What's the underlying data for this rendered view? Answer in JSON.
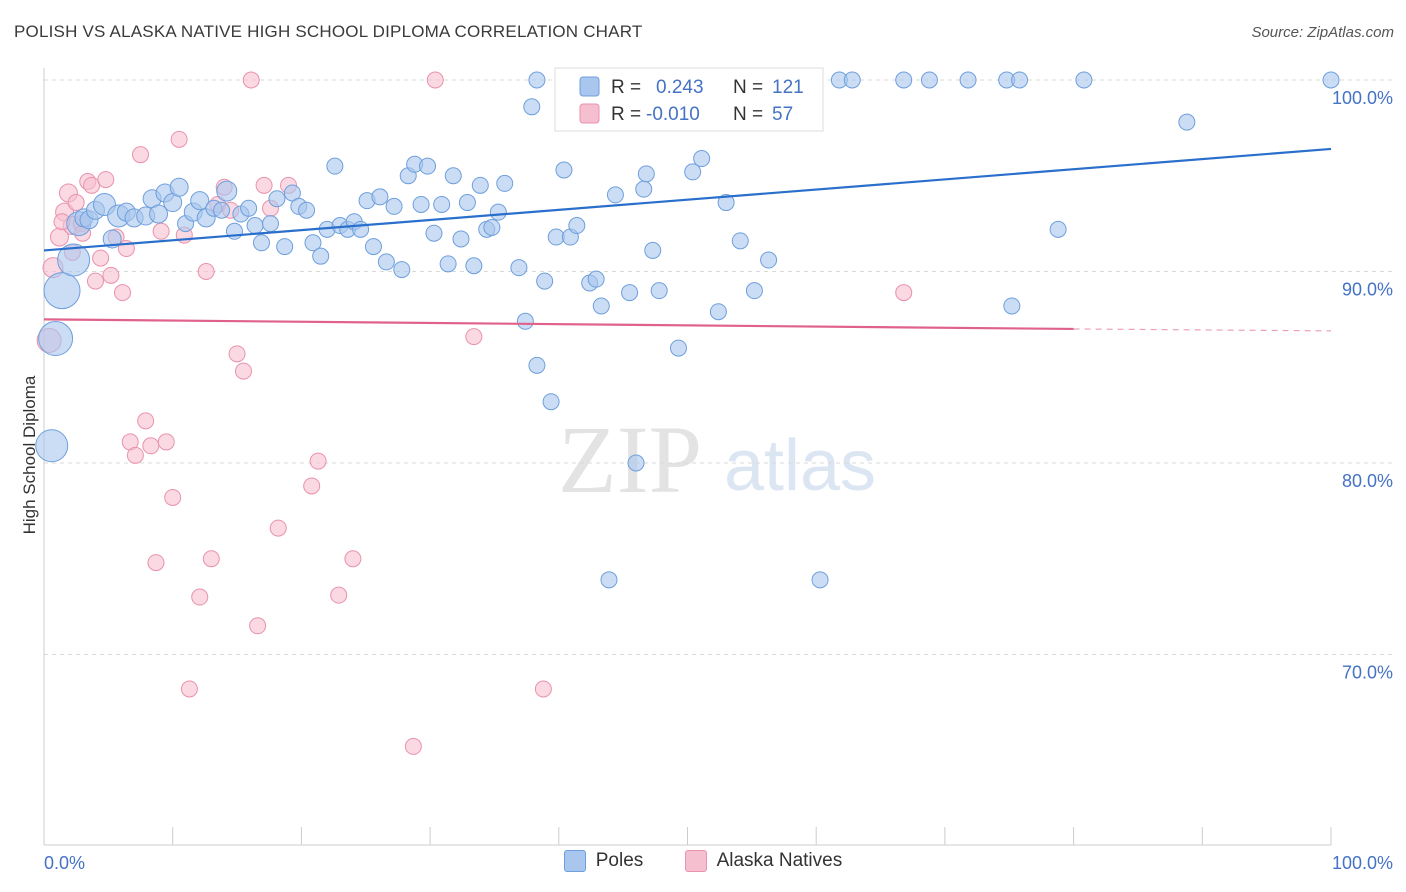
{
  "title": "POLISH VS ALASKA NATIVE HIGH SCHOOL DIPLOMA CORRELATION CHART",
  "source": "Source: ZipAtlas.com",
  "watermark": {
    "zip": "ZIP",
    "atlas": "atlas"
  },
  "colors": {
    "poles_fill": "#a9c6ef",
    "poles_stroke": "#6e9fdc",
    "poles_line": "#2a6fcc",
    "natives_fill": "#f6bfd0",
    "natives_stroke": "#e992ad",
    "natives_line": "#e0628a",
    "axis_label": "#4472c4",
    "grid": "#d9d9d9"
  },
  "legend": {
    "poles": {
      "r_label": "R =",
      "r_value": "0.243",
      "n_label": "N =",
      "n_value": "121"
    },
    "natives": {
      "r_label": "R =",
      "r_value": "-0.010",
      "n_label": "N =",
      "n_value": "57"
    }
  },
  "chart_data": {
    "type": "scatter",
    "title": "POLISH VS ALASKA NATIVE HIGH SCHOOL DIPLOMA CORRELATION CHART",
    "xlabel": "",
    "ylabel": "High School Diploma",
    "xlim": [
      0,
      100
    ],
    "ylim": [
      60.5,
      101.5
    ],
    "x_tick_labels": [
      "0.0%",
      "100.0%"
    ],
    "y_ticks": [
      70,
      80,
      90,
      100
    ],
    "y_tick_labels": [
      "70.0%",
      "80.0%",
      "90.0%",
      "100.0%"
    ],
    "grid": "horizontal dashed",
    "legend_placement": "top-center",
    "series": [
      {
        "name": "Poles",
        "r": 0.243,
        "n": 121,
        "trend": {
          "x": [
            0,
            100
          ],
          "y": [
            91.1,
            96.4
          ]
        },
        "points": [
          [
            0.6,
            80.9,
            16
          ],
          [
            0.9,
            86.5,
            17
          ],
          [
            1.4,
            89.0,
            18
          ],
          [
            2.3,
            90.6,
            16
          ],
          [
            2.7,
            92.5,
            12
          ],
          [
            3.1,
            92.8,
            9
          ],
          [
            3.5,
            92.7,
            9
          ],
          [
            4.0,
            93.2,
            9
          ],
          [
            4.7,
            93.5,
            11
          ],
          [
            5.3,
            91.7,
            9
          ],
          [
            5.8,
            92.9,
            11
          ],
          [
            6.4,
            93.1,
            9
          ],
          [
            7.0,
            92.8,
            9
          ],
          [
            7.9,
            92.9,
            9
          ],
          [
            8.4,
            93.8,
            9
          ],
          [
            8.9,
            93.0,
            9
          ],
          [
            9.4,
            94.1,
            9
          ],
          [
            10.0,
            93.6,
            9
          ],
          [
            10.5,
            94.4,
            9
          ],
          [
            11.0,
            92.5,
            8
          ],
          [
            11.6,
            93.1,
            9
          ],
          [
            12.1,
            93.7,
            9
          ],
          [
            12.6,
            92.8,
            9
          ],
          [
            13.2,
            93.3,
            8
          ],
          [
            13.8,
            93.2,
            8
          ],
          [
            14.2,
            94.2,
            10
          ],
          [
            14.8,
            92.1,
            8
          ],
          [
            15.3,
            93.0,
            8
          ],
          [
            15.9,
            93.3,
            8
          ],
          [
            16.4,
            92.4,
            8
          ],
          [
            16.9,
            91.5,
            8
          ],
          [
            17.6,
            92.5,
            8
          ],
          [
            18.1,
            93.8,
            8
          ],
          [
            18.7,
            91.3,
            8
          ],
          [
            19.3,
            94.1,
            8
          ],
          [
            19.8,
            93.4,
            8
          ],
          [
            20.4,
            93.2,
            8
          ],
          [
            20.9,
            91.5,
            8
          ],
          [
            21.5,
            90.8,
            8
          ],
          [
            22.0,
            92.2,
            8
          ],
          [
            22.6,
            95.5,
            8
          ],
          [
            23.0,
            92.4,
            8
          ],
          [
            23.6,
            92.2,
            8
          ],
          [
            24.1,
            92.6,
            8
          ],
          [
            24.6,
            92.2,
            8
          ],
          [
            25.1,
            93.7,
            8
          ],
          [
            25.6,
            91.3,
            8
          ],
          [
            26.1,
            93.9,
            8
          ],
          [
            26.6,
            90.5,
            8
          ],
          [
            27.2,
            93.4,
            8
          ],
          [
            27.8,
            90.1,
            8
          ],
          [
            28.3,
            95.0,
            8
          ],
          [
            28.8,
            95.6,
            8
          ],
          [
            29.3,
            93.5,
            8
          ],
          [
            29.8,
            95.5,
            8
          ],
          [
            30.3,
            92.0,
            8
          ],
          [
            30.9,
            93.5,
            8
          ],
          [
            31.4,
            90.4,
            8
          ],
          [
            31.8,
            95.0,
            8
          ],
          [
            32.4,
            91.7,
            8
          ],
          [
            32.9,
            93.6,
            8
          ],
          [
            33.4,
            90.3,
            8
          ],
          [
            33.9,
            94.5,
            8
          ],
          [
            34.4,
            92.2,
            8
          ],
          [
            34.8,
            92.3,
            8
          ],
          [
            35.3,
            93.1,
            8
          ],
          [
            35.8,
            94.6,
            8
          ],
          [
            36.9,
            90.2,
            8
          ],
          [
            37.4,
            87.4,
            8
          ],
          [
            37.9,
            98.6,
            8
          ],
          [
            38.3,
            85.1,
            8
          ],
          [
            38.9,
            89.5,
            8
          ],
          [
            39.4,
            83.2,
            8
          ],
          [
            39.8,
            91.8,
            8
          ],
          [
            40.4,
            95.3,
            8
          ],
          [
            40.9,
            91.8,
            8
          ],
          [
            41.4,
            92.4,
            8
          ],
          [
            41.8,
            97.9,
            8
          ],
          [
            42.4,
            89.4,
            8
          ],
          [
            42.9,
            89.6,
            8
          ],
          [
            43.3,
            88.2,
            8
          ],
          [
            43.9,
            73.9,
            8
          ],
          [
            44.4,
            94.0,
            8
          ],
          [
            45.5,
            88.9,
            8
          ],
          [
            46.0,
            80.0,
            8
          ],
          [
            46.6,
            94.3,
            8
          ],
          [
            46.8,
            95.1,
            8
          ],
          [
            47.3,
            91.1,
            8
          ],
          [
            47.8,
            89.0,
            8
          ],
          [
            49.3,
            86.0,
            8
          ],
          [
            50.4,
            95.2,
            8
          ],
          [
            51.1,
            95.9,
            8
          ],
          [
            51.9,
            99.2,
            8
          ],
          [
            52.4,
            87.9,
            8
          ],
          [
            53.0,
            93.6,
            8
          ],
          [
            54.1,
            91.6,
            8
          ],
          [
            55.2,
            89.0,
            8
          ],
          [
            56.3,
            90.6,
            8
          ],
          [
            58.8,
            100.0,
            8
          ],
          [
            60.3,
            73.9,
            8
          ],
          [
            61.8,
            100.0,
            8
          ],
          [
            62.8,
            100.0,
            8
          ],
          [
            66.8,
            100.0,
            8
          ],
          [
            68.8,
            100.0,
            8
          ],
          [
            71.8,
            100.0,
            8
          ],
          [
            74.8,
            100.0,
            8
          ],
          [
            75.2,
            88.2,
            8
          ],
          [
            75.8,
            100.0,
            8
          ],
          [
            78.8,
            92.2,
            8
          ],
          [
            80.8,
            100.0,
            8
          ],
          [
            88.8,
            97.8,
            8
          ],
          [
            100.0,
            100.0,
            8
          ],
          [
            38.3,
            100.0,
            8
          ],
          [
            43.2,
            100.0,
            8
          ],
          [
            48.8,
            100.0,
            8
          ],
          [
            49.8,
            100.0,
            8
          ],
          [
            52.8,
            100.0,
            8
          ]
        ]
      },
      {
        "name": "Alaska Natives",
        "r": -0.01,
        "n": 57,
        "trend": {
          "x": [
            0,
            80
          ],
          "y": [
            87.5,
            87.0
          ]
        },
        "trend_dashed": {
          "x": [
            80,
            100
          ],
          "y": [
            87.0,
            86.9
          ]
        },
        "points": [
          [
            0.4,
            86.4,
            12
          ],
          [
            0.7,
            90.2,
            10
          ],
          [
            1.2,
            91.8,
            9
          ],
          [
            1.6,
            93.1,
            9
          ],
          [
            1.9,
            94.1,
            9
          ],
          [
            2.2,
            92.4,
            9
          ],
          [
            2.5,
            93.6,
            8
          ],
          [
            2.9,
            92.5,
            8
          ],
          [
            3.4,
            94.7,
            8
          ],
          [
            3.7,
            94.5,
            8
          ],
          [
            4.0,
            89.5,
            8
          ],
          [
            4.4,
            90.7,
            8
          ],
          [
            4.8,
            94.8,
            8
          ],
          [
            5.2,
            89.8,
            8
          ],
          [
            5.6,
            91.8,
            8
          ],
          [
            6.1,
            88.9,
            8
          ],
          [
            6.7,
            81.1,
            8
          ],
          [
            7.1,
            80.4,
            8
          ],
          [
            7.5,
            96.1,
            8
          ],
          [
            7.9,
            82.2,
            8
          ],
          [
            8.3,
            80.9,
            8
          ],
          [
            8.7,
            74.8,
            8
          ],
          [
            9.1,
            92.1,
            8
          ],
          [
            9.5,
            81.1,
            8
          ],
          [
            10.0,
            78.2,
            8
          ],
          [
            10.5,
            96.9,
            8
          ],
          [
            10.9,
            91.9,
            8
          ],
          [
            11.3,
            68.2,
            8
          ],
          [
            12.1,
            73.0,
            8
          ],
          [
            12.6,
            90.0,
            8
          ],
          [
            13.0,
            75.0,
            8
          ],
          [
            13.5,
            93.5,
            8
          ],
          [
            14.0,
            94.4,
            8
          ],
          [
            14.5,
            93.2,
            8
          ],
          [
            15.0,
            85.7,
            8
          ],
          [
            15.5,
            84.8,
            8
          ],
          [
            16.1,
            100.0,
            8
          ],
          [
            16.6,
            71.5,
            8
          ],
          [
            17.1,
            94.5,
            8
          ],
          [
            17.6,
            93.3,
            8
          ],
          [
            18.2,
            76.6,
            8
          ],
          [
            19.0,
            94.5,
            8
          ],
          [
            20.8,
            78.8,
            8
          ],
          [
            21.3,
            80.1,
            8
          ],
          [
            22.9,
            73.1,
            8
          ],
          [
            24.0,
            75.0,
            8
          ],
          [
            28.7,
            65.2,
            8
          ],
          [
            30.4,
            100.0,
            8
          ],
          [
            33.4,
            86.6,
            8
          ],
          [
            38.8,
            68.2,
            8
          ],
          [
            47.8,
            100.0,
            8
          ],
          [
            51.8,
            100.0,
            8
          ],
          [
            66.8,
            88.9,
            8
          ],
          [
            3.0,
            92.0,
            8
          ],
          [
            6.4,
            91.2,
            8
          ],
          [
            1.4,
            92.6,
            8
          ],
          [
            2.2,
            91.0,
            8
          ]
        ]
      }
    ]
  }
}
